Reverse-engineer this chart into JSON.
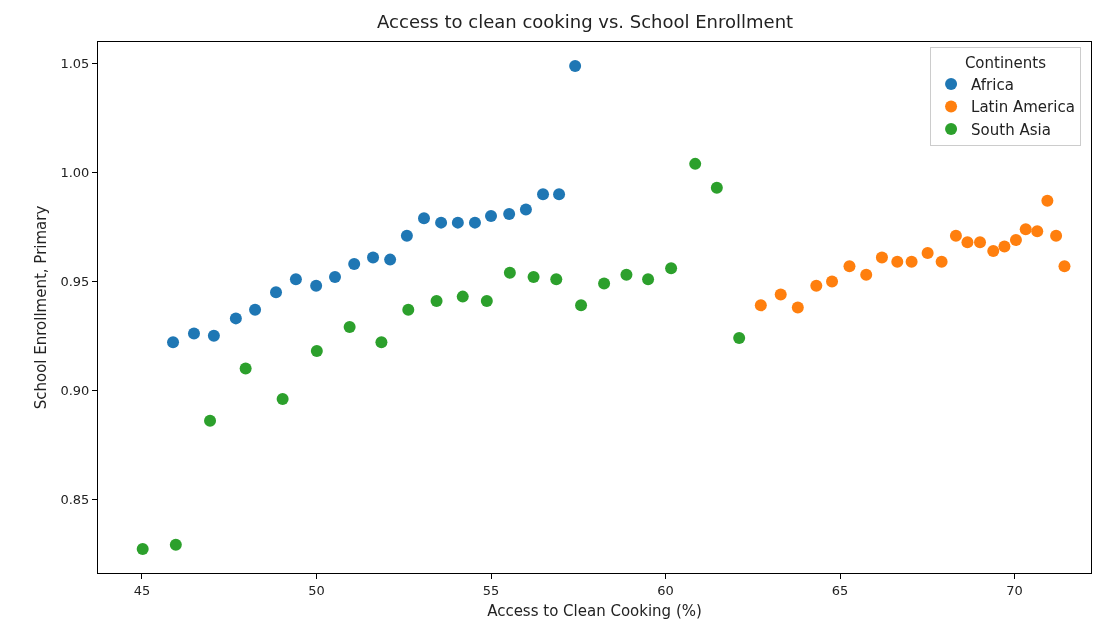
{
  "chart_data": {
    "type": "scatter",
    "title": "Access to clean cooking vs. School Enrollment",
    "xlabel": "Access to Clean Cooking (%)",
    "ylabel": "School Enrollment, Primary",
    "legend_title": "Continents",
    "legend": "top right",
    "grid": false,
    "marker": "circle",
    "xlim": [
      43.74,
      72.19
    ],
    "xticks": [
      45,
      50,
      55,
      60,
      65,
      70
    ],
    "ylim": [
      0.816,
      1.06
    ],
    "yticks": [
      {
        "value": 0.85,
        "label": "0.85"
      },
      {
        "value": 0.9,
        "label": "0.90"
      },
      {
        "value": 0.95,
        "label": "0.95"
      },
      {
        "value": 1.0,
        "label": "1.00"
      },
      {
        "value": 1.05,
        "label": "1.05"
      }
    ],
    "series": [
      {
        "name": "Africa",
        "color": "#1f77b4",
        "x": [
          45.89,
          46.49,
          47.06,
          47.69,
          48.24,
          48.84,
          49.41,
          49.99,
          50.53,
          51.08,
          51.62,
          52.11,
          52.59,
          53.08,
          53.57,
          54.05,
          54.54,
          55.0,
          55.52,
          56.0,
          56.49,
          56.95,
          57.41
        ],
        "values": [
          0.922,
          0.926,
          0.925,
          0.933,
          0.937,
          0.945,
          0.951,
          0.948,
          0.952,
          0.958,
          0.961,
          0.96,
          0.971,
          0.979,
          0.977,
          0.977,
          0.977,
          0.98,
          0.981,
          0.983,
          0.99,
          0.99,
          1.049
        ]
      },
      {
        "name": "Latin America",
        "color": "#ff7f0e",
        "x": [
          62.73,
          63.3,
          63.79,
          64.32,
          64.77,
          65.27,
          65.75,
          66.2,
          66.64,
          67.05,
          67.51,
          67.91,
          68.32,
          68.65,
          69.01,
          69.39,
          69.71,
          70.04,
          70.32,
          70.65,
          70.94,
          71.19,
          71.43
        ],
        "values": [
          0.939,
          0.944,
          0.938,
          0.948,
          0.95,
          0.957,
          0.953,
          0.961,
          0.959,
          0.959,
          0.963,
          0.959,
          0.971,
          0.968,
          0.968,
          0.964,
          0.966,
          0.969,
          0.974,
          0.973,
          0.987,
          0.971,
          0.957
        ]
      },
      {
        "name": "South Asia",
        "color": "#2ca02c",
        "x": [
          45.02,
          45.97,
          46.95,
          47.97,
          49.03,
          50.01,
          50.95,
          51.86,
          52.63,
          53.44,
          54.19,
          54.88,
          55.54,
          56.22,
          56.87,
          57.58,
          58.24,
          58.88,
          59.5,
          60.16,
          60.85,
          61.47,
          62.11
        ],
        "values": [
          0.827,
          0.829,
          0.886,
          0.91,
          0.896,
          0.918,
          0.929,
          0.922,
          0.937,
          0.941,
          0.943,
          0.941,
          0.954,
          0.952,
          0.951,
          0.939,
          0.949,
          0.953,
          0.951,
          0.956,
          1.004,
          0.993,
          0.924
        ]
      }
    ]
  }
}
